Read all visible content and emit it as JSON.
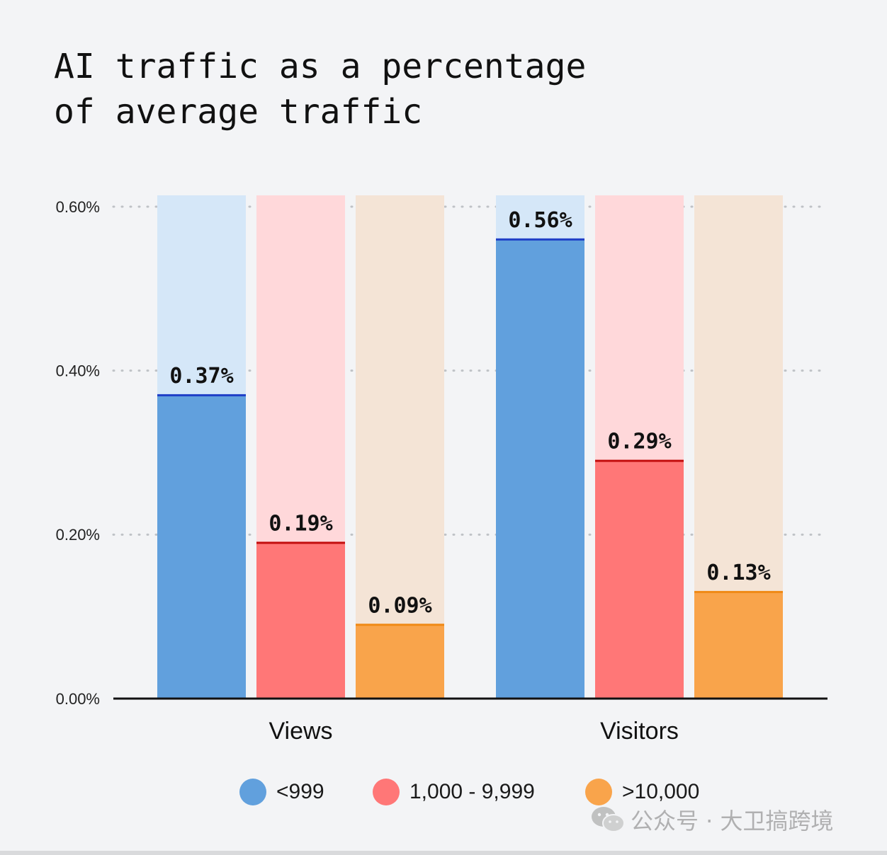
{
  "title_lines": [
    "AI traffic as a percentage",
    "of average traffic"
  ],
  "chart_data": {
    "type": "bar",
    "categories": [
      "Views",
      "Visitors"
    ],
    "series": [
      {
        "name": "<999",
        "values": [
          0.37,
          0.56
        ],
        "labels": [
          "0.37%",
          "0.56%"
        ],
        "color": "#61a0dd",
        "line_color": "#1f3fc7",
        "background_color": "#d5e7f8"
      },
      {
        "name": "1,000 - 9,999",
        "values": [
          0.19,
          0.29
        ],
        "labels": [
          "0.19%",
          "0.29%"
        ],
        "color": "#ff7777",
        "line_color": "#c30e0e",
        "background_color": "#ffd8da"
      },
      {
        "name": ">10,000",
        "values": [
          0.09,
          0.13
        ],
        "labels": [
          "0.09%",
          "0.13%"
        ],
        "color": "#f9a44b",
        "line_color": "#f08a16",
        "background_color": "#f4e4d6"
      }
    ],
    "ylim": [
      0,
      0.6
    ],
    "y_ticks": [
      0.0,
      0.2,
      0.4,
      0.6
    ],
    "y_tick_labels": [
      "0.00%",
      "0.20%",
      "0.40%",
      "0.60%"
    ],
    "grid": "dotted horizontal",
    "legend_position": "bottom",
    "title": "AI traffic as a percentage of average traffic",
    "xlabel": "",
    "ylabel": ""
  },
  "legend": [
    {
      "label": "<999",
      "color": "#61a0dd"
    },
    {
      "label": "1,000 - 9,999",
      "color": "#ff7777"
    },
    {
      "label": ">10,000",
      "color": "#f9a44b"
    }
  ],
  "watermark": {
    "text": "公众号 · 大卫搞跨境",
    "icon": "wechat-icon"
  }
}
